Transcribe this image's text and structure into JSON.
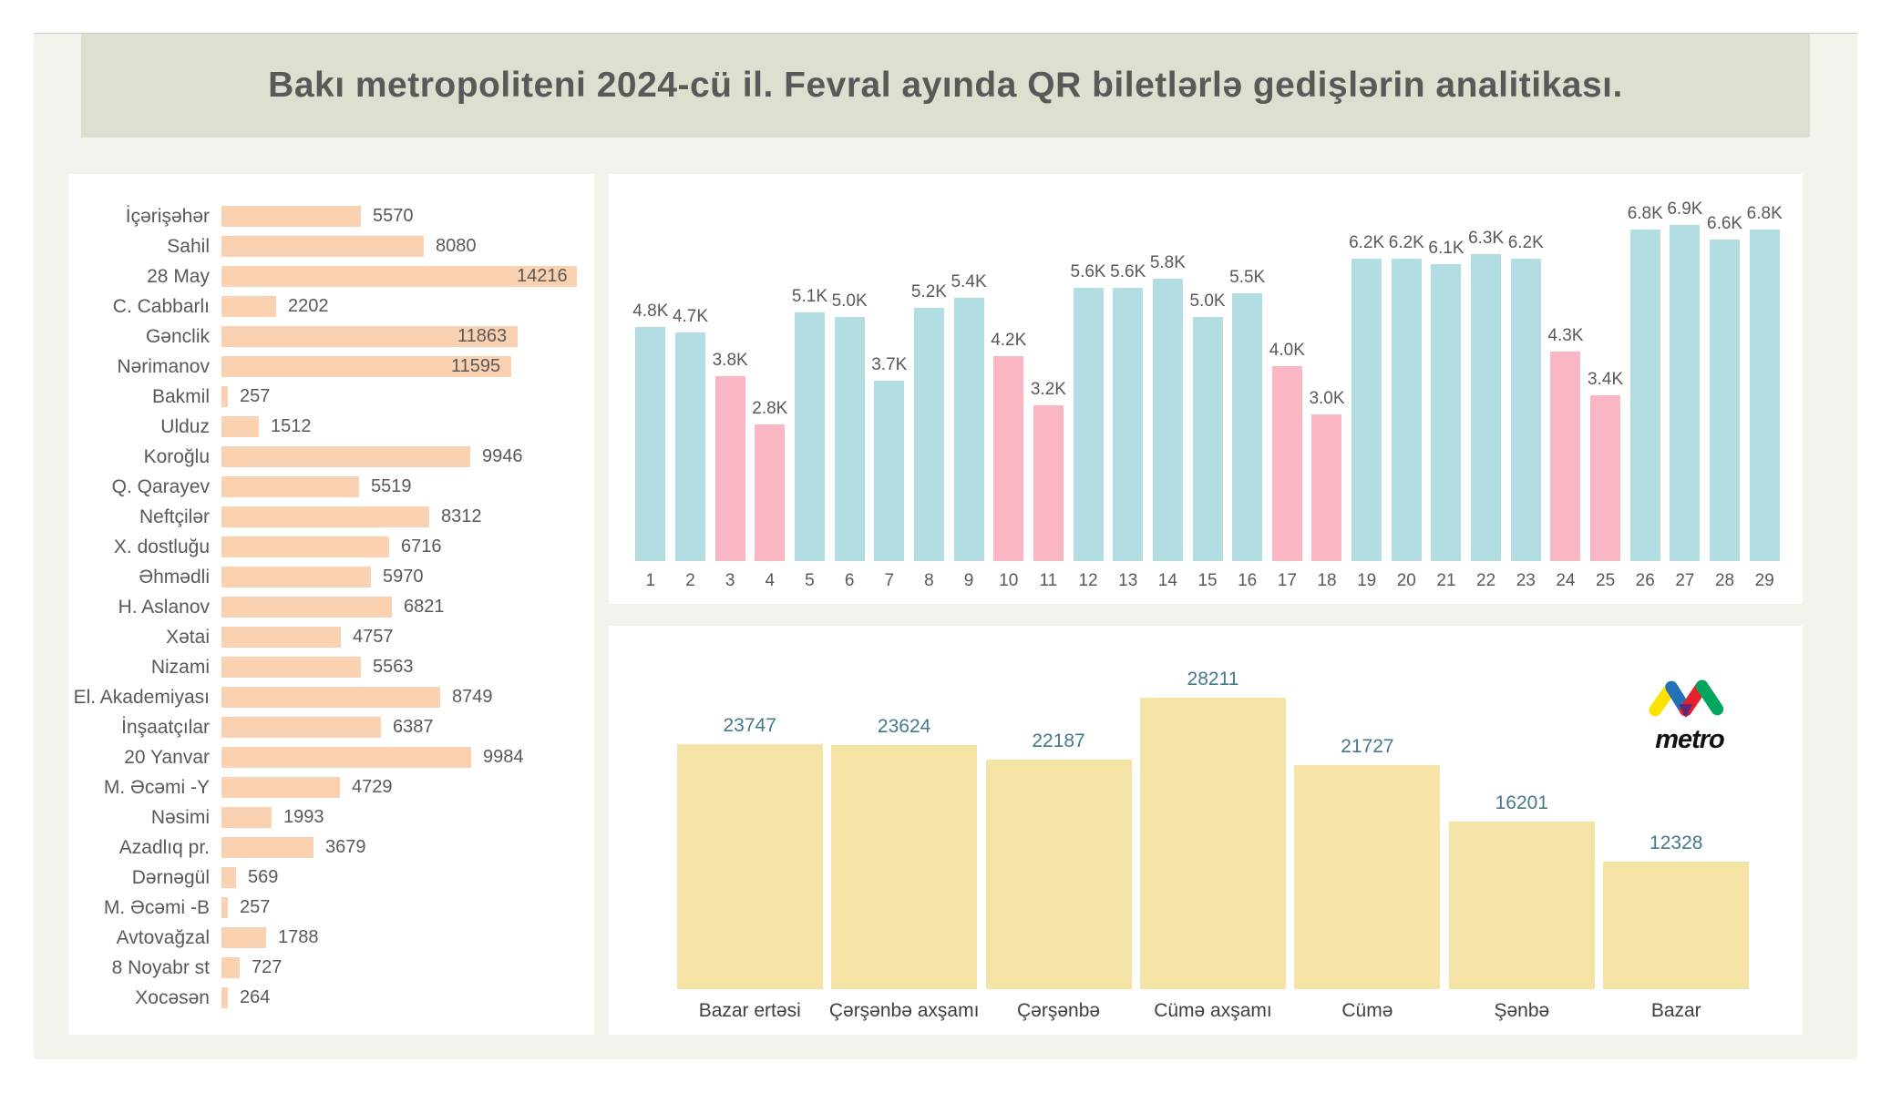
{
  "title": "Bakı metropoliteni 2024-cü il. Fevral ayında QR biletlərlə gedişlərin analitikası.",
  "logo": {
    "text": "metro"
  },
  "colors": {
    "page_bg": "#FFFFFF",
    "canvas_bg": "#F2F3EC",
    "banner_bg": "#DEDFD0",
    "card_bg": "#FFFFFF",
    "station_bar": "#FAD2B1",
    "weekday_bar_blue": "#B2DDE3",
    "weekend_bar_pink": "#FBB6C3",
    "weekday_total_bar": "#F6E3A6",
    "label_gray": "#595959",
    "value_teal": "#44798A"
  },
  "chart_data": [
    {
      "id": "stations",
      "type": "bar",
      "orientation": "horizontal",
      "title": "",
      "categories": [
        "İçərişəhər",
        "Sahil",
        "28 May",
        "C. Cabbarlı",
        "Gənclik",
        "Nərimanov",
        "Bakmil",
        "Ulduz",
        "Koroğlu",
        "Q. Qarayev",
        "Neftçilər",
        "X. dostluğu",
        "Əhmədli",
        "H. Aslanov",
        "Xətai",
        "Nizami",
        "El. Akademiyası",
        "İnşaatçılar",
        "20 Yanvar",
        "M. Əcəmi -Y",
        "Nəsimi",
        "Azadlıq pr.",
        "Dərnəgül",
        "M. Əcəmi -B",
        "Avtovağzal",
        "8 Noyabr st",
        "Xocəsən"
      ],
      "values": [
        5570,
        8080,
        14216,
        2202,
        11863,
        11595,
        257,
        1512,
        9946,
        5519,
        8312,
        6716,
        5970,
        6821,
        4757,
        5563,
        8749,
        6387,
        9984,
        4729,
        1993,
        3679,
        569,
        257,
        1788,
        727,
        264
      ],
      "xlim": [
        0,
        14216
      ],
      "grid": false,
      "bar_color": "#FAD2B1"
    },
    {
      "id": "daily-trips",
      "type": "bar",
      "orientation": "vertical",
      "title": "",
      "categories": [
        "1",
        "2",
        "3",
        "4",
        "5",
        "6",
        "7",
        "8",
        "9",
        "10",
        "11",
        "12",
        "13",
        "14",
        "15",
        "16",
        "17",
        "18",
        "19",
        "20",
        "21",
        "22",
        "23",
        "24",
        "25",
        "26",
        "27",
        "28",
        "29"
      ],
      "values": [
        4800,
        4700,
        3800,
        2800,
        5100,
        5000,
        3700,
        5200,
        5400,
        4200,
        3200,
        5600,
        5600,
        5800,
        5000,
        5500,
        4000,
        3000,
        6200,
        6200,
        6100,
        6300,
        6200,
        4300,
        3400,
        6800,
        6900,
        6600,
        6800
      ],
      "value_labels": [
        "4.8K",
        "4.7K",
        "3.8K",
        "2.8K",
        "5.1K",
        "5.0K",
        "3.7K",
        "5.2K",
        "5.4K",
        "4.2K",
        "3.2K",
        "5.6K",
        "5.6K",
        "5.8K",
        "5.0K",
        "5.5K",
        "4.0K",
        "3.0K",
        "6.2K",
        "6.2K",
        "6.1K",
        "6.3K",
        "6.2K",
        "4.3K",
        "3.4K",
        "6.8K",
        "6.9K",
        "6.6K",
        "6.8K"
      ],
      "pink_days": [
        3,
        4,
        10,
        11,
        17,
        18,
        24,
        25
      ],
      "ylim": [
        0,
        7200
      ],
      "grid": false,
      "bar_color_default": "#B2DDE3",
      "bar_color_highlight": "#FBB6C3"
    },
    {
      "id": "weekday-trips",
      "type": "bar",
      "orientation": "vertical",
      "title": "",
      "categories": [
        "Bazar ertəsi",
        "Çərşənbə axşamı",
        "Çərşənbə",
        "Cümə axşamı",
        "Cümə",
        "Şənbə",
        "Bazar"
      ],
      "values": [
        23747,
        23624,
        22187,
        28211,
        21727,
        16201,
        12328
      ],
      "ylim": [
        0,
        32000
      ],
      "grid": false,
      "bar_color": "#F6E3A6"
    }
  ]
}
